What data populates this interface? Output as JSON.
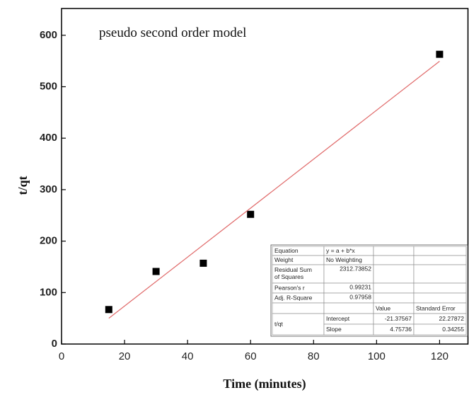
{
  "chart_data": {
    "type": "scatter",
    "annotation": "pseudo second order model",
    "x_label": "Time (minutes)",
    "y_label": "t/qt",
    "xlim": [
      0,
      129
    ],
    "xticks": [
      0,
      20,
      40,
      60,
      80,
      100,
      120
    ],
    "ylim": [
      0,
      652
    ],
    "yticks": [
      0,
      100,
      200,
      300,
      400,
      500,
      600
    ],
    "series": [
      {
        "style": "markers",
        "color": "#000000",
        "x": [
          15,
          30,
          45,
          60,
          120
        ],
        "values": [
          67,
          141,
          157,
          252,
          563
        ]
      },
      {
        "style": "line",
        "color": "#e06a6a",
        "x": [
          15,
          120
        ],
        "values": [
          50,
          549.5
        ]
      }
    ],
    "fit_table": {
      "stats": [
        {
          "label": "Equation",
          "value": "y = a + b*x"
        },
        {
          "label": "Weight",
          "value": "No Weighting"
        },
        {
          "label": "Residual Sum of Squares",
          "value": 2312.73852
        },
        {
          "label": "Pearson's r",
          "value": 0.99231
        },
        {
          "label": "Adj. R-Square",
          "value": 0.97958
        }
      ],
      "columns": [
        "Value",
        "Standard Error"
      ],
      "group": "t/qt",
      "params": [
        {
          "name": "Intercept",
          "value": -21.37567,
          "error": 22.27872
        },
        {
          "name": "Slope",
          "value": 4.75736,
          "error": 0.34255
        }
      ]
    }
  }
}
